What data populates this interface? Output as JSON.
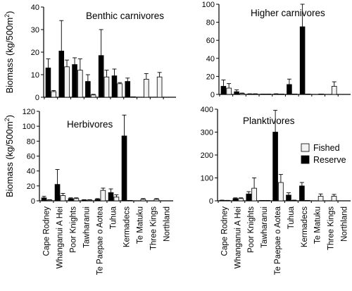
{
  "categories": [
    "Cape Rodney",
    "Whanganui A Hei",
    "Poor Knights",
    "Tawharanui",
    "Te Paepae o Aotea",
    "Tuhua",
    "Kermadecs",
    "Te Matuku",
    "Three Kings",
    "Northland"
  ],
  "legend": {
    "fished": "Fished",
    "reserve": "Reserve",
    "position": "center-right of Planktivores panel"
  },
  "colors": {
    "fished": "#f2f2f2",
    "reserve": "#000000",
    "axis": "#000000"
  },
  "ylabel_main": "Biomass (kg/500m",
  "ylabel_sup": "2",
  "ylabel_end": ")",
  "chart_data": [
    {
      "type": "bar",
      "title": "Benthic carnivores",
      "ylim": [
        0,
        40
      ],
      "yticks": [
        "0",
        "10",
        "20",
        "30",
        "40"
      ],
      "show_ylabel": true,
      "series": [
        {
          "name": "Reserve",
          "values": [
            13,
            20.5,
            14.5,
            7,
            18.5,
            9.5,
            7,
            null,
            null,
            null
          ],
          "errors": [
            4,
            13.5,
            3,
            3,
            11.5,
            3,
            1.5,
            null,
            null,
            null
          ]
        },
        {
          "name": "Fished",
          "values": [
            2.5,
            13.5,
            12,
            1,
            9,
            6,
            0,
            8,
            9,
            null
          ],
          "errors": [
            0.5,
            3,
            5,
            0.3,
            3,
            0.5,
            0,
            2.5,
            2,
            null
          ]
        }
      ]
    },
    {
      "type": "bar",
      "title": "Higher carnivores",
      "ylim": [
        0,
        100
      ],
      "yticks": [
        "0",
        "20",
        "40",
        "60",
        "80",
        "100"
      ],
      "show_ylabel": false,
      "series": [
        {
          "name": "Reserve",
          "values": [
            9,
            3,
            0.5,
            0,
            0.5,
            11,
            75,
            null,
            null,
            null
          ],
          "errors": [
            7,
            2,
            0.2,
            0,
            0.2,
            6,
            25,
            null,
            null,
            null
          ]
        },
        {
          "name": "Fished",
          "values": [
            7,
            1,
            0.5,
            0.3,
            0.3,
            0,
            0,
            0,
            9,
            null
          ],
          "errors": [
            5,
            0.5,
            0.2,
            0.1,
            0.1,
            0,
            0,
            0,
            5,
            null
          ]
        }
      ]
    },
    {
      "type": "bar",
      "title": "Herbivores",
      "ylim": [
        0,
        120
      ],
      "yticks": [
        "0",
        "20",
        "40",
        "60",
        "80",
        "100",
        "120"
      ],
      "show_ylabel": true,
      "series": [
        {
          "name": "Reserve",
          "values": [
            4,
            22,
            3,
            1,
            2,
            11,
            87,
            null,
            null,
            null
          ],
          "errors": [
            2,
            20,
            1,
            0.5,
            1,
            5,
            28,
            null,
            null,
            null
          ]
        },
        {
          "name": "Fished",
          "values": [
            1,
            7,
            3,
            1,
            14,
            5,
            0,
            2,
            2,
            null
          ],
          "errors": [
            0.5,
            3,
            1,
            0.5,
            3,
            3,
            0,
            1,
            1,
            null
          ]
        }
      ]
    },
    {
      "type": "bar",
      "title": "Planktivores",
      "ylim": [
        0,
        400
      ],
      "yticks": [
        "0",
        "100",
        "200",
        "300",
        "400"
      ],
      "show_ylabel": false,
      "series": [
        {
          "name": "Reserve",
          "values": [
            2,
            10,
            30,
            0,
            300,
            25,
            65,
            null,
            null,
            null
          ],
          "errors": [
            1,
            3,
            10,
            0,
            95,
            10,
            15,
            null,
            null,
            null
          ]
        },
        {
          "name": "Fished",
          "values": [
            1,
            10,
            55,
            0,
            80,
            2,
            0,
            20,
            20,
            null
          ],
          "errors": [
            1,
            3,
            45,
            0,
            35,
            1,
            0,
            10,
            8,
            null
          ]
        }
      ]
    }
  ]
}
